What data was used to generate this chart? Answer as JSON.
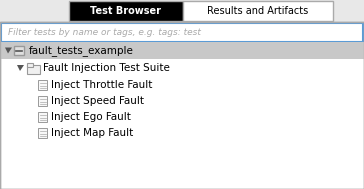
{
  "fig_width": 3.64,
  "fig_height": 1.89,
  "dpi": 100,
  "bg_color": "#e8e8e8",
  "tab_active_text": "Test Browser",
  "tab_active_bg": "#000000",
  "tab_active_fg": "#ffffff",
  "tab_inactive_text": "Results and Artifacts",
  "tab_inactive_bg": "#ffffff",
  "tab_inactive_fg": "#000000",
  "tab_border": "#aaaaaa",
  "filter_placeholder": "Filter tests by name or tags, e.g. tags: test",
  "filter_text_color": "#aaaaaa",
  "filter_bg": "#ffffff",
  "filter_border": "#5b9bd5",
  "row1_bg": "#c8c8c8",
  "row1_text": "fault_tests_example",
  "row2_text": "Fault Injection Test Suite",
  "items": [
    "Inject Throttle Fault",
    "Inject Speed Fault",
    "Inject Ego Fault",
    "Inject Map Fault"
  ],
  "item_color": "#000000",
  "tree_color": "#555555",
  "panel_bg": "#f2f2f2",
  "icon_border": "#999999",
  "icon_bg": "#eeeeee"
}
